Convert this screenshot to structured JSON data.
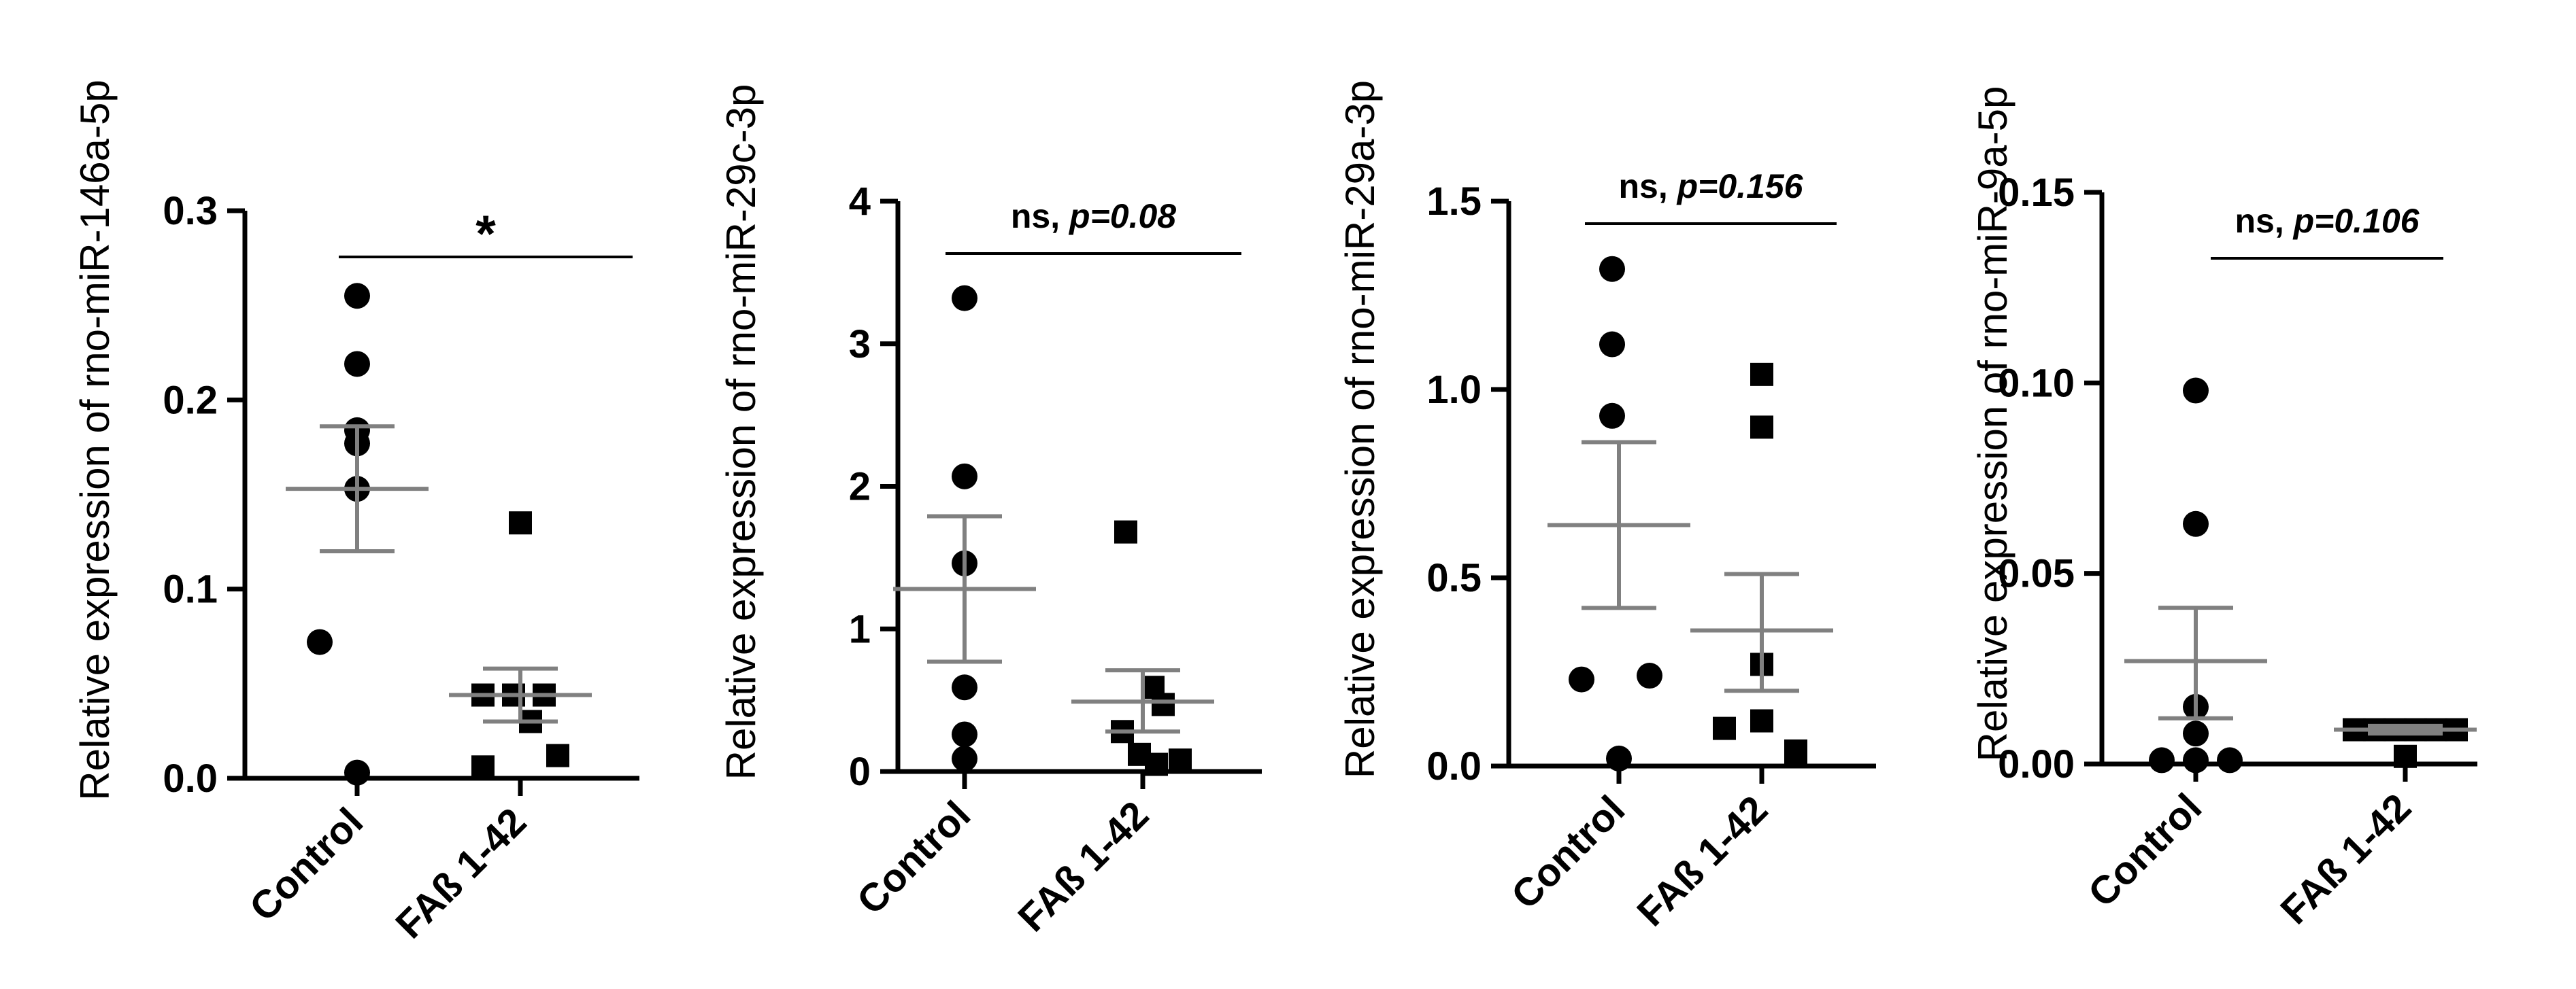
{
  "chart_data": [
    {
      "type": "scatter",
      "ylabel": "Relative expression of rno-miR-146a-5p",
      "categories": [
        "Control",
        "FAß 1-42"
      ],
      "ylim": [
        0,
        0.3
      ],
      "yticks": [
        "0.0",
        "0.1",
        "0.2",
        "0.3"
      ],
      "ytick_values": [
        0,
        0.1,
        0.2,
        0.3
      ],
      "series": [
        {
          "name": "Control",
          "marker": "circle",
          "values": [
            0.255,
            0.219,
            0.184,
            0.177,
            0.153,
            0.072,
            0.003
          ],
          "mean": 0.153,
          "sem_low": 0.12,
          "sem_high": 0.186
        },
        {
          "name": "FAß 1-42",
          "marker": "square",
          "values": [
            0.135,
            0.044,
            0.044,
            0.044,
            0.03,
            0.006,
            0.012
          ],
          "mean": 0.044,
          "sem_low": 0.03,
          "sem_high": 0.058
        }
      ],
      "significance": {
        "symbol": "*",
        "label": "",
        "p": ""
      }
    },
    {
      "type": "scatter",
      "ylabel": "Relative expression of rno-miR-29c-3p",
      "categories": [
        "Control",
        "FAß 1-42"
      ],
      "ylim": [
        0,
        4
      ],
      "yticks": [
        "0",
        "1",
        "2",
        "3",
        "4"
      ],
      "ytick_values": [
        0,
        1,
        2,
        3,
        4
      ],
      "series": [
        {
          "name": "Control",
          "marker": "circle",
          "values": [
            3.32,
            2.07,
            1.46,
            0.59,
            0.26,
            0.09
          ],
          "mean": 1.28,
          "sem_low": 0.77,
          "sem_high": 1.79
        },
        {
          "name": "FAß 1-42",
          "marker": "square",
          "values": [
            1.68,
            0.59,
            0.47,
            0.28,
            0.12,
            0.05,
            0.08
          ],
          "mean": 0.49,
          "sem_low": 0.28,
          "sem_high": 0.71
        }
      ],
      "significance": {
        "symbol": "",
        "label": "ns, ",
        "p": "p=0.08"
      }
    },
    {
      "type": "scatter",
      "ylabel": "Relative expression of rno-miR-29a-3p",
      "categories": [
        "Control",
        "FAß 1-42"
      ],
      "ylim": [
        0,
        1.5
      ],
      "yticks": [
        "0.0",
        "0.5",
        "1.0",
        "1.5"
      ],
      "ytick_values": [
        0,
        0.5,
        1.0,
        1.5
      ],
      "series": [
        {
          "name": "Control",
          "marker": "circle",
          "values": [
            1.32,
            1.12,
            0.93,
            0.23,
            0.24,
            0.02
          ],
          "mean": 0.64,
          "sem_low": 0.42,
          "sem_high": 0.86
        },
        {
          "name": "FAß 1-42",
          "marker": "square",
          "values": [
            1.04,
            0.9,
            0.27,
            0.12,
            0.1,
            0.04,
            0.03
          ],
          "mean": 0.36,
          "sem_low": 0.2,
          "sem_high": 0.51
        },
        {
          "name": "",
          "marker": "none",
          "values": []
        }
      ],
      "significance": {
        "symbol": "",
        "label": "ns, ",
        "p": "p=0.156"
      }
    },
    {
      "type": "scatter",
      "ylabel": "Relative expression of rno-miR-9a-5p",
      "categories": [
        "Control",
        "FAß 1-42"
      ],
      "ylim": [
        0,
        0.15
      ],
      "yticks": [
        "0.00",
        "0.05",
        "0.10",
        "0.15"
      ],
      "ytick_values": [
        0,
        0.05,
        0.1,
        0.15
      ],
      "series": [
        {
          "name": "Control",
          "marker": "circle",
          "values": [
            0.098,
            0.063,
            0.015,
            0.008,
            0.001,
            0.001,
            0.001
          ],
          "mean": 0.027,
          "sem_low": 0.012,
          "sem_high": 0.041
        },
        {
          "name": "FAß 1-42",
          "marker": "square",
          "values": [
            0.009,
            0.009,
            0.009,
            0.009,
            0.009,
            0.009,
            0.002
          ],
          "mean": 0.009,
          "sem_low": 0.008,
          "sem_high": 0.01
        }
      ],
      "significance": {
        "symbol": "",
        "label": "ns, ",
        "p": "p=0.106"
      }
    }
  ]
}
